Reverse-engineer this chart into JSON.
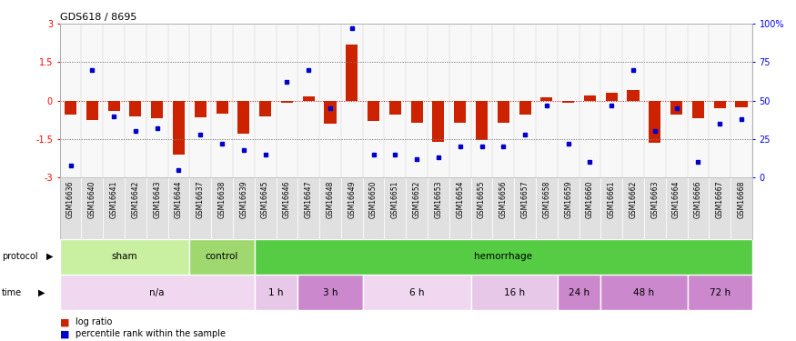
{
  "title": "GDS618 / 8695",
  "samples": [
    "GSM16636",
    "GSM16640",
    "GSM16641",
    "GSM16642",
    "GSM16643",
    "GSM16644",
    "GSM16637",
    "GSM16638",
    "GSM16639",
    "GSM16645",
    "GSM16646",
    "GSM16647",
    "GSM16648",
    "GSM16649",
    "GSM16650",
    "GSM16651",
    "GSM16652",
    "GSM16653",
    "GSM16654",
    "GSM16655",
    "GSM16656",
    "GSM16657",
    "GSM16658",
    "GSM16659",
    "GSM16660",
    "GSM16661",
    "GSM16662",
    "GSM16663",
    "GSM16664",
    "GSM16666",
    "GSM16667",
    "GSM16668"
  ],
  "log_ratio": [
    -0.55,
    -0.75,
    -0.4,
    -0.6,
    -0.7,
    -2.1,
    -0.65,
    -0.5,
    -1.3,
    -0.6,
    -0.1,
    0.15,
    -0.9,
    2.2,
    -0.8,
    -0.55,
    -0.85,
    -1.6,
    -0.85,
    -1.55,
    -0.85,
    -0.55,
    0.12,
    -0.08,
    0.2,
    0.3,
    0.4,
    -1.65,
    -0.55,
    -0.7,
    -0.3,
    -0.25
  ],
  "percentile_rank": [
    8,
    70,
    40,
    30,
    32,
    5,
    28,
    22,
    18,
    15,
    62,
    70,
    45,
    97,
    15,
    15,
    12,
    13,
    20,
    20,
    20,
    28,
    47,
    22,
    10,
    47,
    70,
    30,
    45,
    10,
    35,
    38
  ],
  "protocol_groups": [
    {
      "label": "sham",
      "start": 0,
      "end": 5,
      "color": "#c8f0a0"
    },
    {
      "label": "control",
      "start": 6,
      "end": 8,
      "color": "#a0d870"
    },
    {
      "label": "hemorrhage",
      "start": 9,
      "end": 31,
      "color": "#55cc44"
    }
  ],
  "time_groups": [
    {
      "label": "n/a",
      "start": 0,
      "end": 8,
      "color": "#f0d8f0"
    },
    {
      "label": "1 h",
      "start": 9,
      "end": 10,
      "color": "#e8c8e8"
    },
    {
      "label": "3 h",
      "start": 11,
      "end": 13,
      "color": "#cc88cc"
    },
    {
      "label": "6 h",
      "start": 14,
      "end": 18,
      "color": "#f0d8f0"
    },
    {
      "label": "16 h",
      "start": 19,
      "end": 22,
      "color": "#e8c8e8"
    },
    {
      "label": "24 h",
      "start": 23,
      "end": 24,
      "color": "#cc88cc"
    },
    {
      "label": "48 h",
      "start": 25,
      "end": 28,
      "color": "#cc88cc"
    },
    {
      "label": "72 h",
      "start": 29,
      "end": 31,
      "color": "#cc88cc"
    }
  ],
  "ylim": [
    -3,
    3
  ],
  "y2lim": [
    0,
    100
  ],
  "bar_color": "#cc2200",
  "dot_color": "#0000cc",
  "bg_color": "#ffffff"
}
